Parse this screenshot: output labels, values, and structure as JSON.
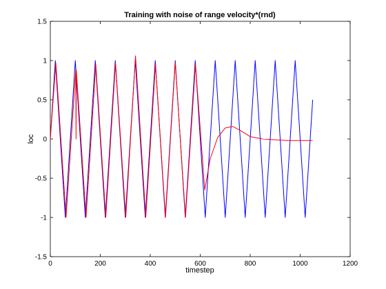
{
  "chart_data": {
    "type": "line",
    "title": "Training with noise of range velocity*(rnd)",
    "xlabel": "timestep",
    "ylabel": "loc",
    "xlim": [
      0,
      1200
    ],
    "ylim": [
      -1.5,
      1.5
    ],
    "xticks": [
      "0",
      "200",
      "400",
      "600",
      "800",
      "1000",
      "1200"
    ],
    "yticks": [
      "-1.5",
      "-1",
      "-0.5",
      "0",
      "0.5",
      "1",
      "1.5"
    ],
    "grid": false,
    "legend": "none",
    "series": [
      {
        "color": "#0000ff",
        "x": [
          0,
          20,
          60,
          100,
          140,
          180,
          220,
          260,
          300,
          340,
          380,
          420,
          460,
          500,
          540,
          580,
          620,
          660,
          700,
          740,
          780,
          820,
          860,
          900,
          940,
          980,
          1020,
          1050
        ],
        "y": [
          0,
          1,
          -1,
          1,
          -1,
          1,
          -1,
          1,
          -1,
          1,
          -1,
          1,
          -1,
          1,
          -1,
          1,
          -1,
          1,
          -1,
          1,
          -1,
          1,
          -1,
          1,
          -1,
          1,
          -1,
          0.5
        ]
      },
      {
        "color": "#ff0000",
        "x": [
          0,
          22,
          63,
          102,
          103,
          104,
          143,
          182,
          222,
          261,
          302,
          341,
          382,
          421,
          461,
          500,
          541,
          581,
          618,
          640,
          670,
          700,
          730,
          760,
          800,
          850,
          900,
          950,
          1000,
          1050
        ],
        "y": [
          0,
          0.97,
          -1,
          0.88,
          0,
          0.88,
          -1,
          0.95,
          -1,
          0.97,
          -1,
          1.06,
          -1,
          0.95,
          -1,
          0.97,
          -1,
          0.95,
          -0.65,
          -0.25,
          0.02,
          0.14,
          0.16,
          0.11,
          0.03,
          0,
          -0.01,
          -0.02,
          -0.02,
          -0.02
        ]
      }
    ]
  }
}
